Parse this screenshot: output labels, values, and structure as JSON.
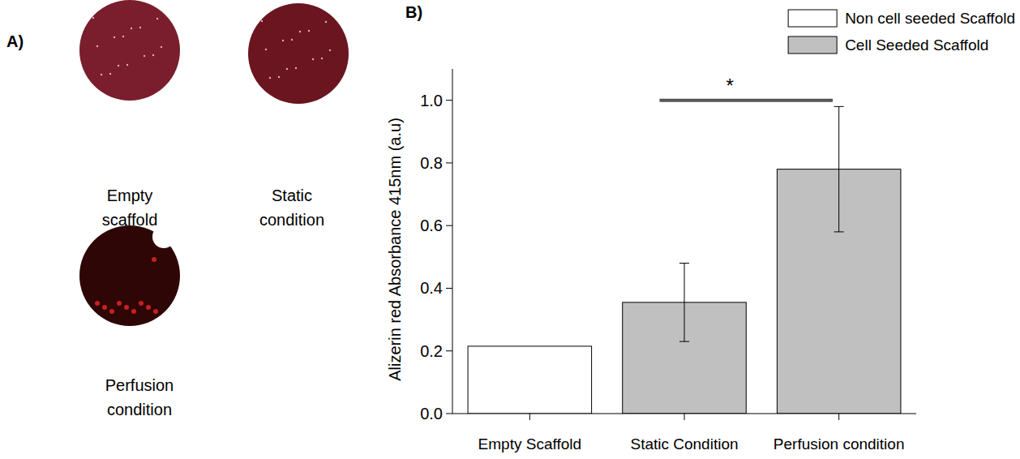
{
  "chart_data": {
    "type": "bar",
    "panel": "B)",
    "y_label": "Alizerin red Absorbance  415nm (a.u)",
    "categories": [
      "Empty Scaffold",
      "Static Condition",
      "Perfusion condition"
    ],
    "series": [
      {
        "name": "Non cell seeded Scaffold",
        "color": "#ffffff",
        "values": [
          0.215,
          null,
          null
        ],
        "errors": [
          null,
          null,
          null
        ]
      },
      {
        "name": "Cell Seeded Scaffold",
        "color": "#c0c0c0",
        "values": [
          null,
          0.355,
          0.78
        ],
        "errors": [
          null,
          0.125,
          0.2
        ]
      }
    ],
    "ylim": [
      0,
      1.1
    ],
    "yticks": [
      {
        "value": 0,
        "label": "0.0"
      },
      0.2,
      0.4,
      0.6,
      0.8,
      {
        "value": 1,
        "label": "1.0"
      }
    ],
    "grid": false,
    "legend": "upper right",
    "annotations": [
      {
        "text": "*",
        "categories": [
          1,
          2
        ],
        "y": 1.0
      }
    ]
  },
  "images": {
    "panel": "A)",
    "items": [
      {
        "caption": "Empty scaffold",
        "color": "#7a1d2c"
      },
      {
        "caption": "Static condition",
        "color": "#6a1520"
      },
      {
        "caption": "Perfusion condition",
        "color": "#2e0606"
      }
    ]
  }
}
